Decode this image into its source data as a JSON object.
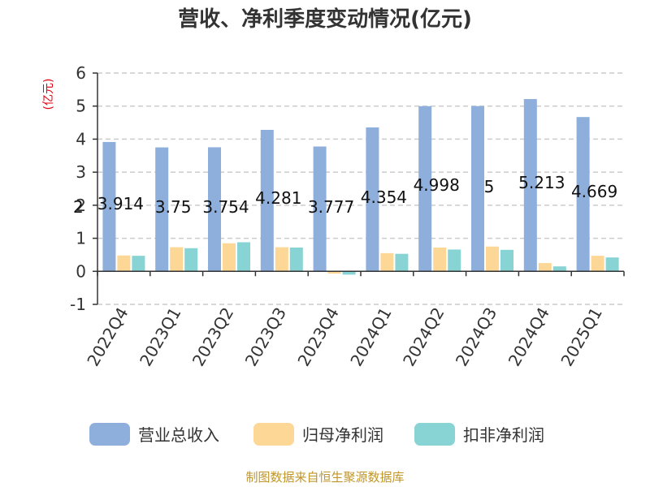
{
  "chart_data": {
    "type": "bar",
    "title": "营收、净利季度变动情况(亿元)",
    "ylabel": "(亿元)",
    "ylim": [
      -1,
      6
    ],
    "yticks": [
      -1,
      0,
      1,
      2,
      3,
      4,
      5,
      6
    ],
    "grid": true,
    "legend_position": "bottom",
    "categories": [
      "2022Q4",
      "2023Q1",
      "2023Q2",
      "2023Q3",
      "2023Q4",
      "2024Q1",
      "2024Q2",
      "2024Q3",
      "2024Q4",
      "2025Q1"
    ],
    "series": [
      {
        "name": "营业总收入",
        "color": "#8eaedb",
        "values": [
          3.914,
          3.75,
          3.754,
          4.281,
          3.777,
          4.354,
          4.998,
          5,
          5.213,
          4.669
        ]
      },
      {
        "name": "归母净利润",
        "color": "#fdd795",
        "values": [
          0.48,
          0.73,
          0.85,
          0.73,
          -0.07,
          0.55,
          0.72,
          0.75,
          0.25,
          0.47
        ]
      },
      {
        "name": "扣非净利润",
        "color": "#88d4d4",
        "values": [
          0.47,
          0.7,
          0.88,
          0.72,
          -0.1,
          0.53,
          0.66,
          0.65,
          0.15,
          0.42
        ]
      }
    ],
    "data_labels": [
      "3.914",
      "3.75",
      "3.754",
      "4.281",
      "3.777",
      "4.354",
      "4.998",
      "5",
      "5.213",
      "4.669"
    ],
    "extra_label": "2"
  },
  "source": "制图数据来自恒生聚源数据库",
  "colors": {
    "grid": "#cccccc",
    "axis": "#333333",
    "ylabel": "#e0000f",
    "source": "#c0962a"
  }
}
